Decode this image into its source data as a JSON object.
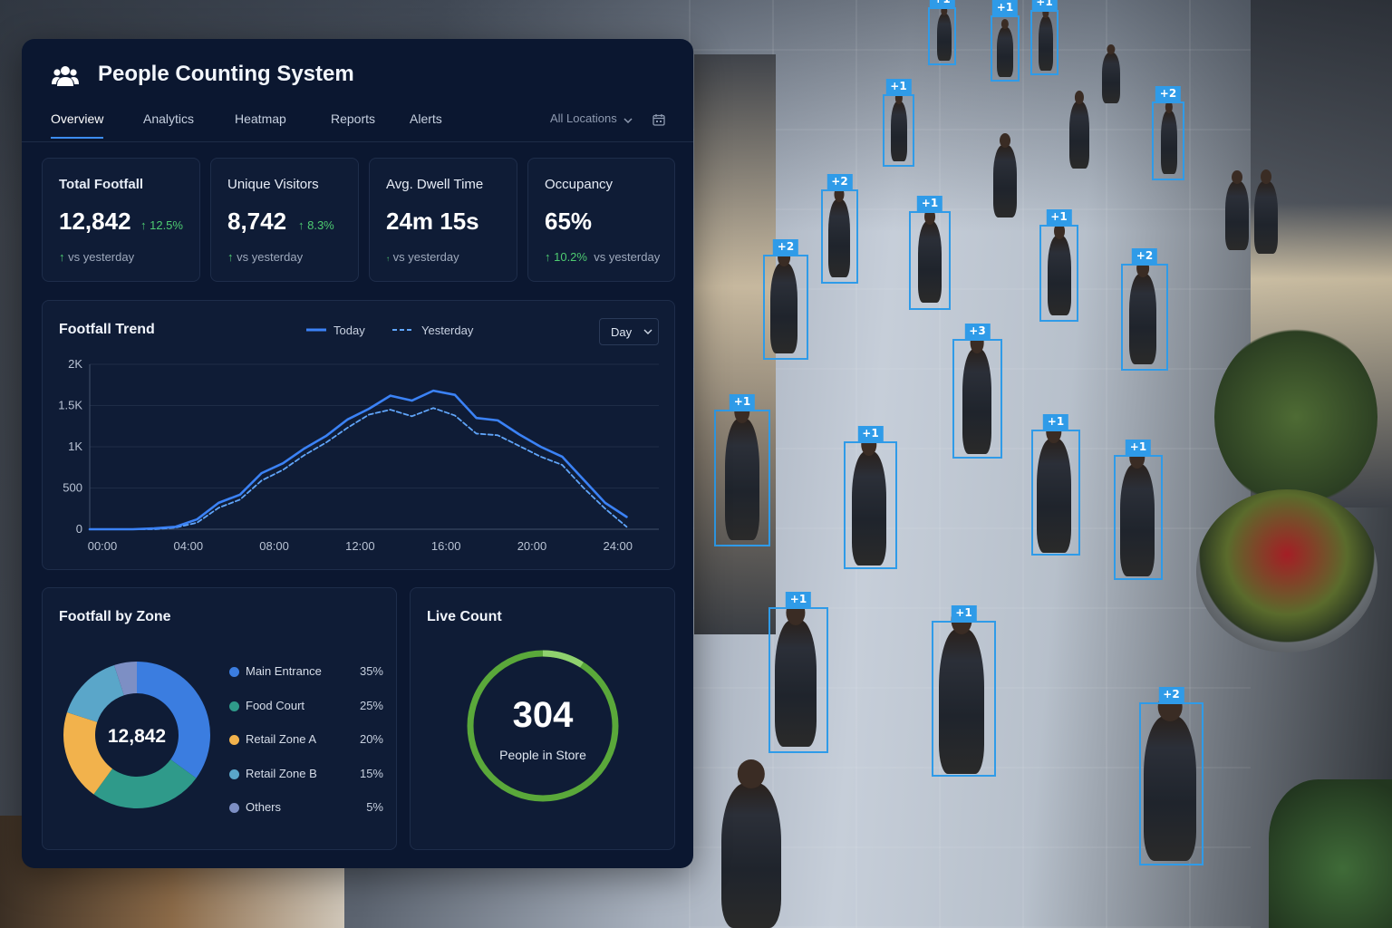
{
  "app": {
    "title": "People Counting System"
  },
  "tabs": [
    {
      "label": "Overview",
      "active": true
    },
    {
      "label": "Analytics"
    },
    {
      "label": "Heatmap"
    },
    {
      "label": "Reports"
    },
    {
      "label": "Alerts"
    }
  ],
  "location_filter": {
    "value": "All Locations"
  },
  "kpis": [
    {
      "title": "Total Footfall",
      "value": "12,842",
      "delta": "↑ 12.5%",
      "foot_icon": "↑",
      "foot": "vs yesterday"
    },
    {
      "title": "Unique Visitors",
      "value": "8,742",
      "delta": "↑ 8.3%",
      "foot_icon": "↑",
      "foot": "vs yesterday"
    },
    {
      "title": "Avg. Dwell Time",
      "value": "24m 15s",
      "foot_icon": "↑",
      "foot": "vs yesterday"
    },
    {
      "title": "Occupancy",
      "value": "65%",
      "foot_delta": "↑ 10.2%",
      "foot": "vs yesterday"
    }
  ],
  "trend": {
    "title": "Footfall Trend",
    "legend_today": "Today",
    "legend_yesterday": "Yesterday",
    "range_select": "Day"
  },
  "chart_data": {
    "type": "line",
    "title": "Footfall Trend",
    "x": [
      0,
      1,
      2,
      3,
      4,
      5,
      6,
      7,
      8,
      9,
      10,
      11,
      12,
      13,
      14,
      15,
      16,
      17,
      18,
      19,
      20,
      21,
      22,
      23,
      24,
      25
    ],
    "x_tick_labels": [
      "00:00",
      "04:00",
      "08:00",
      "12:00",
      "16:00",
      "20:00",
      "24:00"
    ],
    "x_tick_values": [
      0,
      4,
      8,
      12,
      16,
      20,
      24
    ],
    "y_tick_labels": [
      "0",
      "500",
      "1K",
      "1.5K",
      "2K"
    ],
    "y_tick_values": [
      0,
      500,
      1000,
      1500,
      2000
    ],
    "ylim": [
      0,
      2000
    ],
    "xlim": [
      0,
      26.5
    ],
    "series": [
      {
        "name": "Today",
        "color": "#3b82f6",
        "dash": false,
        "values": [
          0,
          0,
          0,
          10,
          30,
          120,
          320,
          420,
          680,
          800,
          980,
          1130,
          1330,
          1460,
          1620,
          1560,
          1680,
          1630,
          1350,
          1320,
          1150,
          1000,
          880,
          600,
          320,
          150
        ]
      },
      {
        "name": "Yesterday",
        "color": "#60a5fa",
        "dash": true,
        "values": [
          0,
          0,
          0,
          0,
          20,
          80,
          260,
          360,
          590,
          720,
          900,
          1050,
          1230,
          1390,
          1450,
          1370,
          1470,
          1380,
          1160,
          1140,
          1010,
          880,
          780,
          500,
          250,
          30
        ]
      }
    ]
  },
  "zones": {
    "title": "Footfall by Zone",
    "total": "12,842",
    "items": [
      {
        "name": "Main Entrance",
        "pct": "35%",
        "value": 35,
        "color": "#3b7de0"
      },
      {
        "name": "Food Court",
        "pct": "25%",
        "value": 25,
        "color": "#2f9a8a"
      },
      {
        "name": "Retail Zone A",
        "pct": "20%",
        "value": 20,
        "color": "#f2b24c"
      },
      {
        "name": "Retail Zone B",
        "pct": "15%",
        "value": 15,
        "color": "#5aa6c9"
      },
      {
        "name": "Others",
        "pct": "5%",
        "value": 5,
        "color": "#7d8fc4"
      }
    ]
  },
  "live": {
    "title": "Live Count",
    "count": "304",
    "label": "People in Store",
    "ring_color": "#5aa83a"
  },
  "detections": [
    "+1",
    "+1",
    "+1",
    "+1",
    "+2",
    "+2",
    "+1",
    "+1",
    "+2",
    "+3",
    "+2",
    "+1",
    "+1",
    "+1",
    "+1",
    "+1",
    "+2"
  ]
}
